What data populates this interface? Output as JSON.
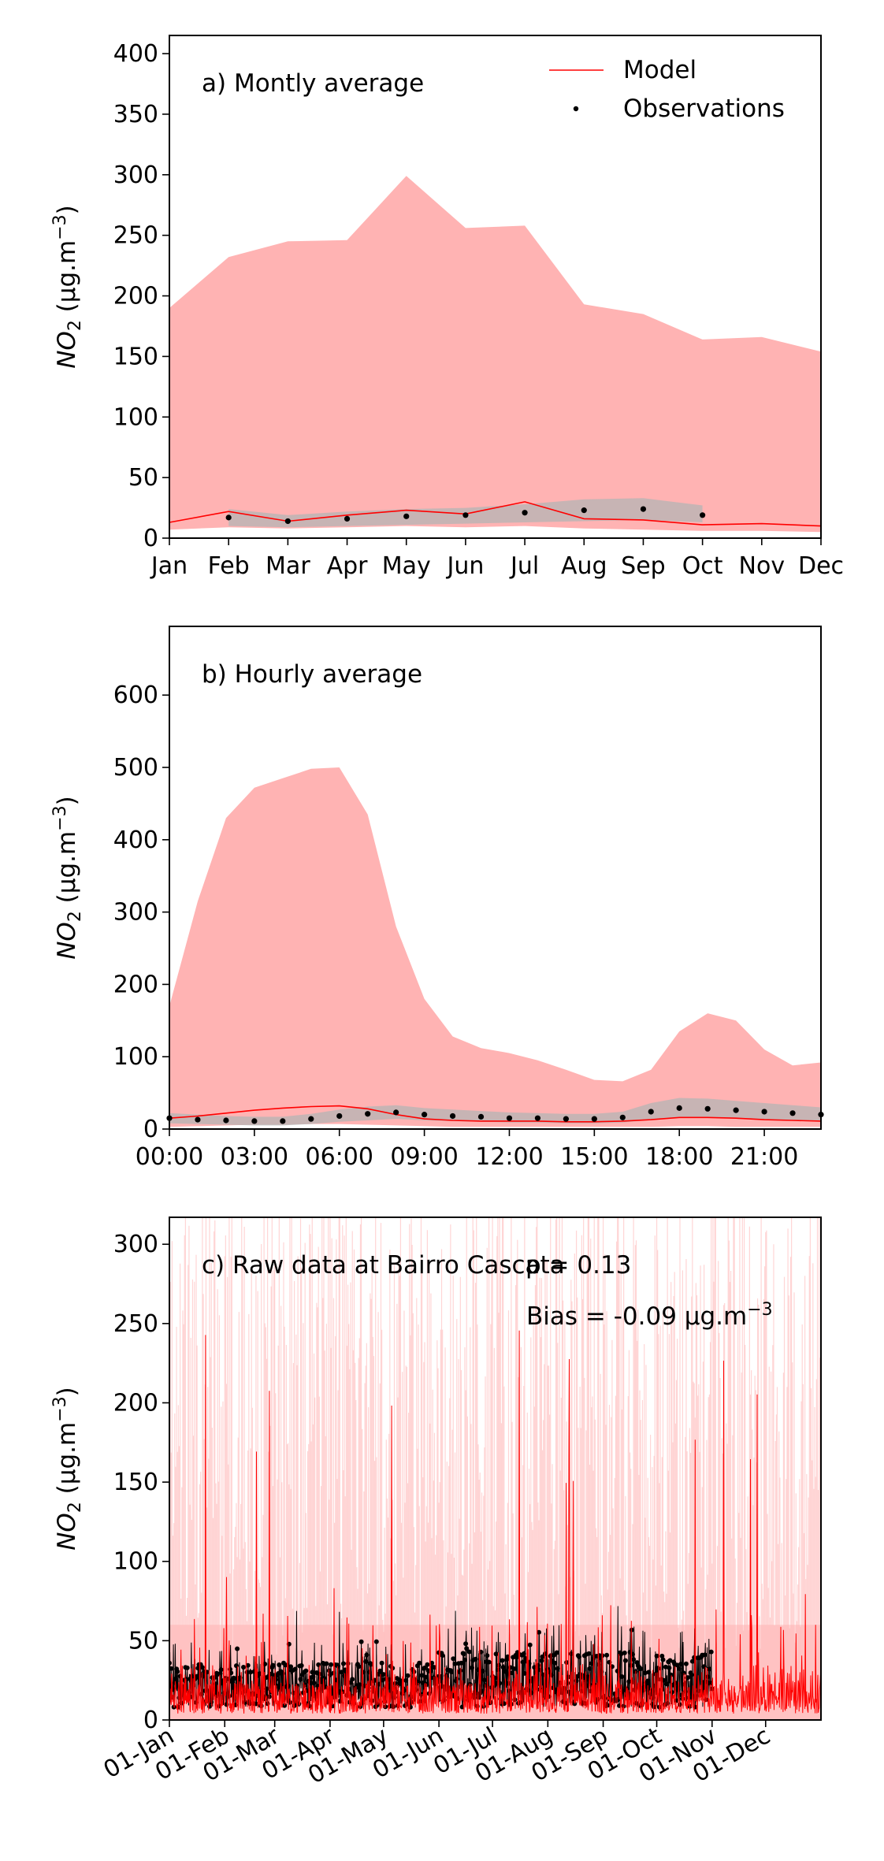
{
  "colors": {
    "model": "#ff0000",
    "model_band": "#ffb3b3",
    "obs": "#000000",
    "obs_band": "#b4b4b4",
    "frame": "#000000"
  },
  "legend": {
    "model_label": "Model",
    "obs_label": "Observations"
  },
  "ylabel_base": "NO",
  "ylabel_sub": "2",
  "ylabel_unit": "(μg.m",
  "ylabel_sup": "−3",
  "ylabel_close": ")",
  "chart_data": [
    {
      "type": "area",
      "title": "a) Montly average",
      "categories": [
        "Jan",
        "Feb",
        "Mar",
        "Apr",
        "May",
        "Jun",
        "Jul",
        "Aug",
        "Sep",
        "Oct",
        "Nov",
        "Dec"
      ],
      "ylim": [
        0,
        415
      ],
      "yticks": [
        0,
        50,
        100,
        150,
        200,
        250,
        300,
        350,
        400
      ],
      "legend_position": "top-right",
      "series": [
        {
          "name": "Model",
          "values": [
            13,
            22,
            14,
            19,
            23,
            20,
            30,
            16,
            15,
            11,
            12,
            10
          ]
        },
        {
          "name": "Observations",
          "values": [
            null,
            17,
            14,
            16,
            18,
            19,
            21,
            23,
            24,
            19,
            null,
            null
          ]
        }
      ],
      "model_band": {
        "lower": [
          7,
          9,
          8,
          9,
          10,
          9,
          10,
          8,
          7,
          6,
          6,
          5
        ],
        "upper": [
          190,
          232,
          245,
          246,
          299,
          256,
          258,
          193,
          185,
          164,
          166,
          154
        ]
      },
      "obs_band": {
        "lower": [
          null,
          10,
          9,
          10,
          11,
          12,
          13,
          14,
          15,
          13,
          null,
          null
        ],
        "upper": [
          null,
          24,
          19,
          22,
          24,
          25,
          28,
          32,
          33,
          27,
          null,
          null
        ]
      }
    },
    {
      "type": "area",
      "title": "b) Hourly average",
      "x": [
        0,
        1,
        2,
        3,
        4,
        5,
        6,
        7,
        8,
        9,
        10,
        11,
        12,
        13,
        14,
        15,
        16,
        17,
        18,
        19,
        20,
        21,
        22,
        23
      ],
      "xticks": [
        "00:00",
        "03:00",
        "06:00",
        "09:00",
        "12:00",
        "15:00",
        "18:00",
        "21:00"
      ],
      "ylim": [
        0,
        695
      ],
      "yticks": [
        0,
        100,
        200,
        300,
        400,
        500,
        600
      ],
      "series": [
        {
          "name": "Model",
          "values": [
            15,
            18,
            22,
            26,
            29,
            31,
            32,
            28,
            20,
            14,
            12,
            11,
            11,
            11,
            10,
            10,
            11,
            13,
            16,
            16,
            15,
            13,
            12,
            11
          ]
        },
        {
          "name": "Observations",
          "values": [
            15,
            13,
            12,
            11,
            11,
            14,
            18,
            21,
            23,
            20,
            18,
            17,
            15,
            15,
            14,
            14,
            16,
            24,
            29,
            28,
            26,
            24,
            22,
            20
          ]
        }
      ],
      "model_band": {
        "lower": [
          3,
          4,
          5,
          6,
          6,
          7,
          7,
          6,
          5,
          4,
          3,
          3,
          3,
          3,
          3,
          3,
          3,
          3,
          4,
          4,
          3,
          3,
          3,
          3
        ],
        "upper": [
          170,
          315,
          430,
          472,
          485,
          498,
          500,
          435,
          280,
          180,
          128,
          112,
          105,
          95,
          82,
          68,
          66,
          82,
          135,
          160,
          150,
          110,
          88,
          92
        ]
      },
      "obs_band": {
        "lower": [
          8,
          7,
          6,
          5,
          5,
          7,
          10,
          12,
          14,
          12,
          11,
          10,
          9,
          9,
          8,
          8,
          9,
          13,
          16,
          16,
          14,
          13,
          12,
          11
        ],
        "upper": [
          22,
          20,
          18,
          17,
          17,
          21,
          27,
          31,
          33,
          29,
          27,
          25,
          23,
          22,
          21,
          21,
          24,
          36,
          43,
          42,
          39,
          36,
          33,
          30
        ]
      }
    },
    {
      "type": "line",
      "title": "c) Raw data at Bairro Cascata",
      "annotations": [
        "p = 0.13",
        "Bias = -0.09 μg.m"
      ],
      "annotation_sup": "−3",
      "xticks": [
        "01-Jan",
        "01-Feb",
        "01-Mar",
        "01-Apr",
        "01-May",
        "01-Jun",
        "01-Jul",
        "01-Aug",
        "01-Sep",
        "01-Oct",
        "01-Nov",
        "01-Dec"
      ],
      "xtick_day_of_year": [
        0,
        31,
        59,
        90,
        120,
        151,
        181,
        212,
        243,
        273,
        304,
        334
      ],
      "xlim_days": [
        0,
        365
      ],
      "obs_end_day": 304,
      "ylim": [
        0,
        317
      ],
      "yticks": [
        0,
        50,
        100,
        150,
        200,
        250,
        300
      ],
      "series": [
        {
          "name": "Model"
        },
        {
          "name": "Observations"
        }
      ]
    }
  ]
}
